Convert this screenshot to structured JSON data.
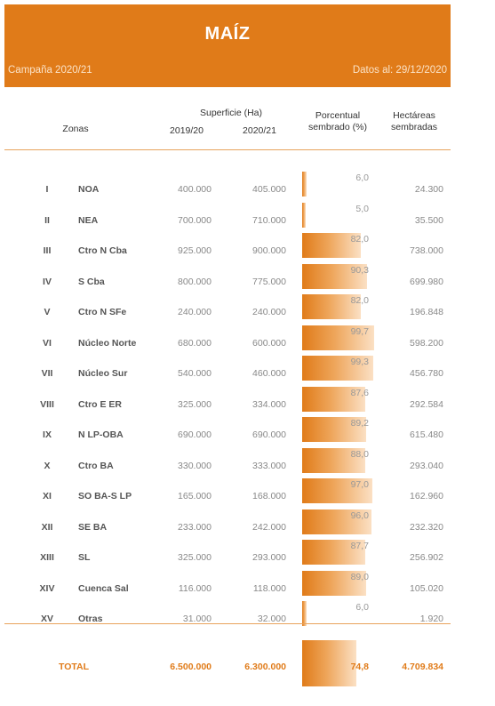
{
  "header": {
    "title": "MAÍZ",
    "campaign": "Campaña 2020/21",
    "date": "Datos al: 29/12/2020"
  },
  "columns": {
    "superficie": "Superficie (Ha)",
    "zonas": "Zonas",
    "y1": "2019/20",
    "y2": "2020/21",
    "pct_line1": "Porcentual",
    "pct_line2": "sembrado (%)",
    "ha_line1": "Hectáreas",
    "ha_line2": "sembradas"
  },
  "colors": {
    "accent": "#e07b19",
    "bar_light": "#fbe0c4"
  },
  "rows": [
    {
      "num": "I",
      "zone": "NOA",
      "s1": "400.000",
      "s2": "405.000",
      "pct_label": "6,0",
      "pct": 6.0,
      "ha": "24.300"
    },
    {
      "num": "II",
      "zone": "NEA",
      "s1": "700.000",
      "s2": "710.000",
      "pct_label": "5,0",
      "pct": 5.0,
      "ha": "35.500"
    },
    {
      "num": "III",
      "zone": "Ctro N Cba",
      "s1": "925.000",
      "s2": "900.000",
      "pct_label": "82,0",
      "pct": 82.0,
      "ha": "738.000"
    },
    {
      "num": "IV",
      "zone": "S Cba",
      "s1": "800.000",
      "s2": "775.000",
      "pct_label": "90,3",
      "pct": 90.3,
      "ha": "699.980"
    },
    {
      "num": "V",
      "zone": "Ctro N SFe",
      "s1": "240.000",
      "s2": "240.000",
      "pct_label": "82,0",
      "pct": 82.0,
      "ha": "196.848"
    },
    {
      "num": "VI",
      "zone": "Núcleo Norte",
      "s1": "680.000",
      "s2": "600.000",
      "pct_label": "99,7",
      "pct": 99.7,
      "ha": "598.200"
    },
    {
      "num": "VII",
      "zone": "Núcleo Sur",
      "s1": "540.000",
      "s2": "460.000",
      "pct_label": "99,3",
      "pct": 99.3,
      "ha": "456.780"
    },
    {
      "num": "VIII",
      "zone": "Ctro E ER",
      "s1": "325.000",
      "s2": "334.000",
      "pct_label": "87,6",
      "pct": 87.6,
      "ha": "292.584"
    },
    {
      "num": "IX",
      "zone": "N LP-OBA",
      "s1": "690.000",
      "s2": "690.000",
      "pct_label": "89,2",
      "pct": 89.2,
      "ha": "615.480"
    },
    {
      "num": "X",
      "zone": "Ctro BA",
      "s1": "330.000",
      "s2": "333.000",
      "pct_label": "88,0",
      "pct": 88.0,
      "ha": "293.040"
    },
    {
      "num": "XI",
      "zone": "SO BA-S LP",
      "s1": "165.000",
      "s2": "168.000",
      "pct_label": "97,0",
      "pct": 97.0,
      "ha": "162.960"
    },
    {
      "num": "XII",
      "zone": "SE BA",
      "s1": "233.000",
      "s2": "242.000",
      "pct_label": "96,0",
      "pct": 96.0,
      "ha": "232.320"
    },
    {
      "num": "XIII",
      "zone": "SL",
      "s1": "325.000",
      "s2": "293.000",
      "pct_label": "87,7",
      "pct": 87.7,
      "ha": "256.902"
    },
    {
      "num": "XIV",
      "zone": "Cuenca Sal",
      "s1": "116.000",
      "s2": "118.000",
      "pct_label": "89,0",
      "pct": 89.0,
      "ha": "105.020"
    },
    {
      "num": "XV",
      "zone": "Otras",
      "s1": "31.000",
      "s2": "32.000",
      "pct_label": "6,0",
      "pct": 6.0,
      "ha": "1.920"
    }
  ],
  "total": {
    "label": "TOTAL",
    "s1": "6.500.000",
    "s2": "6.300.000",
    "pct_label": "74,8",
    "pct": 74.8,
    "ha": "4.709.834"
  }
}
